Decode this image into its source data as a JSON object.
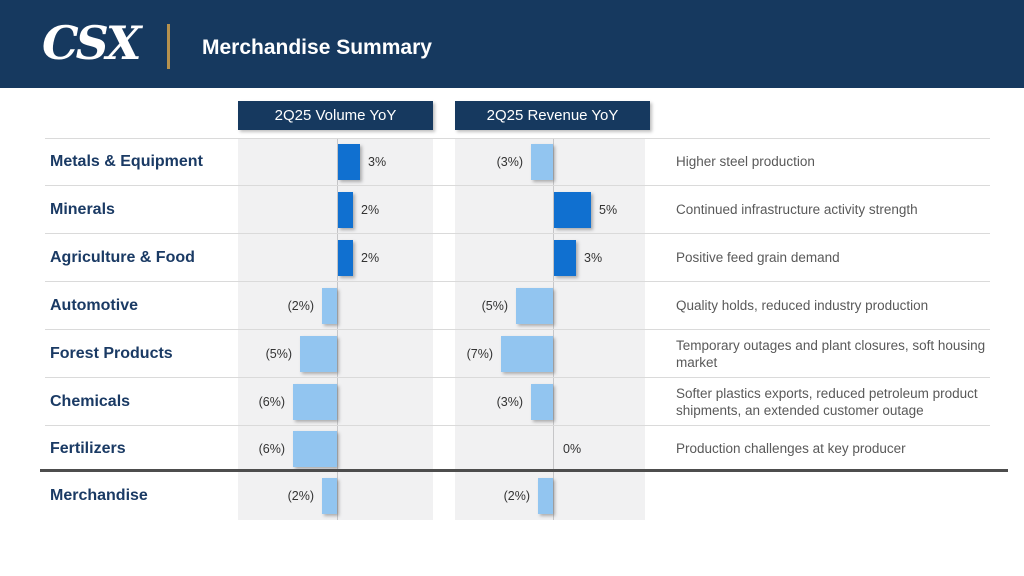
{
  "header": {
    "logo": "CSX",
    "title": "Merchandise Summary"
  },
  "column_headers": {
    "volume": "2Q25 Volume YoY",
    "revenue": "2Q25 Revenue YoY"
  },
  "rows": [
    {
      "label": "Metals & Equipment",
      "volume": 3,
      "volume_label": "3%",
      "revenue": -3,
      "revenue_label": "(3%)",
      "comment": "Higher steel production",
      "total": false
    },
    {
      "label": "Minerals",
      "volume": 2,
      "volume_label": "2%",
      "revenue": 5,
      "revenue_label": "5%",
      "comment": "Continued infrastructure activity strength",
      "total": false
    },
    {
      "label": "Agriculture & Food",
      "volume": 2,
      "volume_label": "2%",
      "revenue": 3,
      "revenue_label": "3%",
      "comment": "Positive feed grain demand",
      "total": false
    },
    {
      "label": "Automotive",
      "volume": -2,
      "volume_label": "(2%)",
      "revenue": -5,
      "revenue_label": "(5%)",
      "comment": "Quality holds, reduced industry production",
      "total": false
    },
    {
      "label": "Forest Products",
      "volume": -5,
      "volume_label": "(5%)",
      "revenue": -7,
      "revenue_label": "(7%)",
      "comment": "Temporary outages and plant closures, soft housing market",
      "total": false
    },
    {
      "label": "Chemicals",
      "volume": -6,
      "volume_label": "(6%)",
      "revenue": -3,
      "revenue_label": "(3%)",
      "comment": "Softer plastics exports, reduced petroleum product shipments, an extended customer outage",
      "total": false
    },
    {
      "label": "Fertilizers",
      "volume": -6,
      "volume_label": "(6%)",
      "revenue": 0,
      "revenue_label": "0%",
      "comment": "Production challenges at key producer",
      "total": false
    },
    {
      "label": "Merchandise",
      "volume": -2,
      "volume_label": "(2%)",
      "revenue": -2,
      "revenue_label": "(2%)",
      "comment": "",
      "total": true
    }
  ],
  "chart_data": {
    "type": "bar",
    "orientation": "horizontal",
    "title": "Merchandise Summary",
    "categories": [
      "Metals & Equipment",
      "Minerals",
      "Agriculture & Food",
      "Automotive",
      "Forest Products",
      "Chemicals",
      "Fertilizers",
      "Merchandise"
    ],
    "series": [
      {
        "name": "2Q25 Volume YoY",
        "values": [
          3,
          2,
          2,
          -2,
          -5,
          -6,
          -6,
          -2
        ]
      },
      {
        "name": "2Q25 Revenue YoY",
        "values": [
          -3,
          5,
          3,
          -5,
          -7,
          -3,
          0,
          -2
        ]
      }
    ],
    "value_unit": "percent year-over-year",
    "annotations": [
      "Higher steel production",
      "Continued infrastructure activity strength",
      "Positive feed grain demand",
      "Quality holds, reduced industry production",
      "Temporary outages and plant closures, soft housing market",
      "Softer plastics exports, reduced petroleum product shipments, an extended customer outage",
      "Production challenges at key producer",
      ""
    ],
    "legend_position": "none",
    "grid": false
  },
  "colors": {
    "navy": "#16395f",
    "gold_divider": "#b5914e",
    "positive_bar": "#1070d0",
    "negative_bar": "#92c5f0",
    "chart_band": "#f1f1f2",
    "category_text": "#1a3a64",
    "comment_text": "#595959"
  }
}
